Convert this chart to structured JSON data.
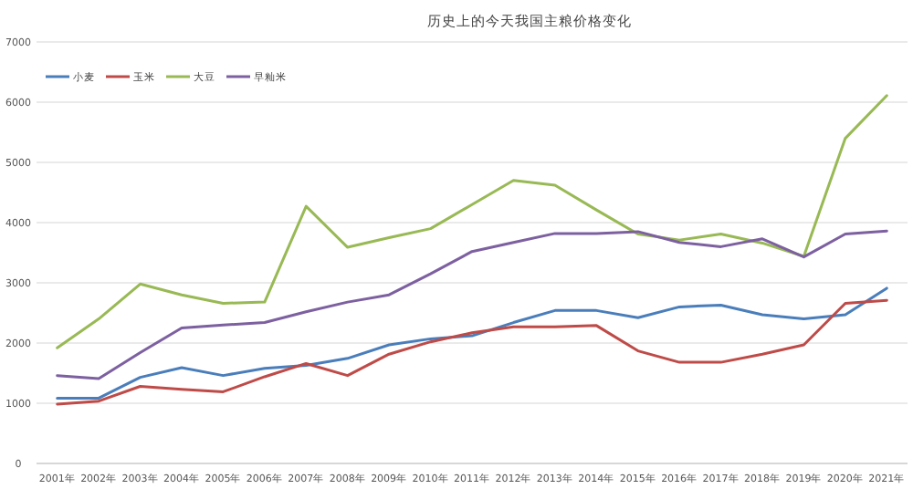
{
  "chart_data": {
    "type": "line",
    "title": "历史上的今天我国主粮价格变化",
    "categories": [
      "2001年",
      "2002年",
      "2003年",
      "2004年",
      "2005年",
      "2006年",
      "2007年",
      "2008年",
      "2009年",
      "2010年",
      "2011年",
      "2012年",
      "2013年",
      "2014年",
      "2015年",
      "2016年",
      "2017年",
      "2018年",
      "2019年",
      "2020年",
      "2021年"
    ],
    "series": [
      {
        "name": "小麦",
        "color": "#4a7ebb",
        "values": [
          1085,
          1085,
          1430,
          1590,
          1460,
          1580,
          1630,
          1745,
          1970,
          2070,
          2120,
          2340,
          2540,
          2540,
          2420,
          2600,
          2630,
          2470,
          2400,
          2470,
          2910
        ]
      },
      {
        "name": "玉米",
        "color": "#be4b48",
        "values": [
          985,
          1035,
          1280,
          1230,
          1190,
          1440,
          1660,
          1460,
          1815,
          2020,
          2170,
          2270,
          2270,
          2290,
          1870,
          1680,
          1680,
          1815,
          1970,
          2660,
          2710
        ]
      },
      {
        "name": "大豆",
        "color": "#98b954",
        "values": [
          1920,
          2400,
          2980,
          2800,
          2660,
          2680,
          4270,
          3590,
          3750,
          3900,
          4300,
          4700,
          4620,
          4210,
          3810,
          3710,
          3810,
          3660,
          3440,
          5400,
          6110
        ]
      },
      {
        "name": "早籼米",
        "color": "#7d60a0",
        "values": [
          1460,
          1410,
          1840,
          2250,
          2300,
          2340,
          2520,
          2680,
          2800,
          3150,
          3520,
          3670,
          3820,
          3820,
          3850,
          3670,
          3600,
          3730,
          3430,
          3810,
          3860
        ]
      }
    ],
    "ylim": [
      0,
      7000
    ],
    "yticks": [
      0,
      1000,
      2000,
      3000,
      4000,
      5000,
      6000,
      7000
    ],
    "grid": "y",
    "legend": "top left",
    "marker": "none",
    "line_style": "solid"
  }
}
